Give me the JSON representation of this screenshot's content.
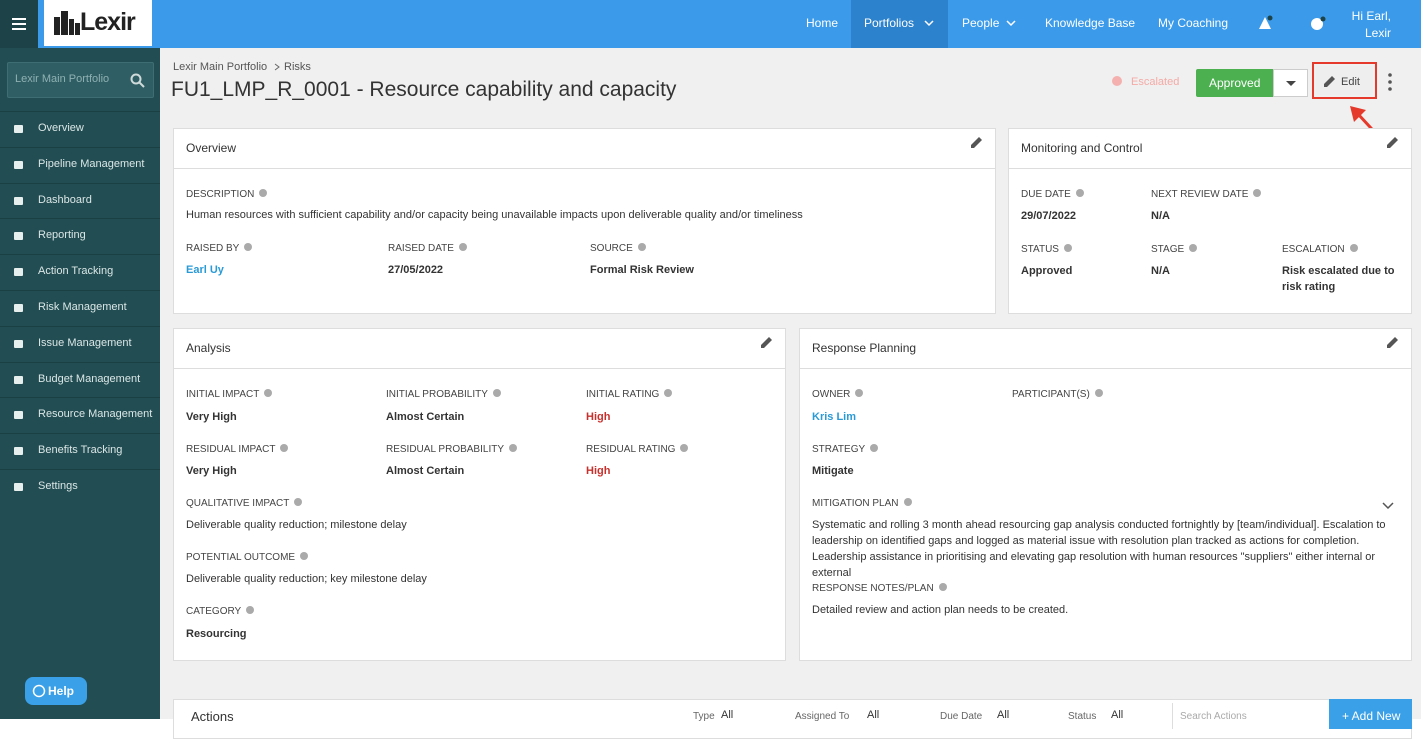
{
  "nav": {
    "logo": "Lexir",
    "items": [
      "Home",
      "Portfolios",
      "People",
      "Knowledge Base",
      "My Coaching"
    ],
    "greeting": "Hi Earl,",
    "user": "Lexir"
  },
  "sidebar": {
    "search": "Lexir Main Portfolio",
    "items": [
      "Overview",
      "Pipeline Management",
      "Dashboard",
      "Reporting",
      "Action Tracking",
      "Risk Management",
      "Issue Management",
      "Budget Management",
      "Resource Management",
      "Benefits Tracking",
      "Settings"
    ],
    "help": "Help"
  },
  "breadcrumb": [
    "Lexir Main Portfolio",
    "Risks"
  ],
  "title": "FU1_LMP_R_0001 - Resource capability and capacity",
  "status": {
    "escalated": "Escalated",
    "approved": "Approved",
    "edit": "Edit"
  },
  "cards": [
    {
      "title": "Overview",
      "fields": [
        {
          "label": "DESCRIPTION",
          "value": "Human resources with sufficient capability and/or capacity being unavailable impacts upon deliverable quality and/or timeliness"
        },
        {
          "label": "RAISED BY",
          "value": "Earl Uy"
        },
        {
          "label": "RAISED DATE",
          "value": "27/05/2022"
        },
        {
          "label": "SOURCE",
          "value": "Formal Risk Review"
        }
      ]
    },
    {
      "title": "Monitoring and Control",
      "fields": [
        {
          "label": "DUE DATE",
          "value": "29/07/2022"
        },
        {
          "label": "NEXT REVIEW DATE",
          "value": "N/A"
        },
        {
          "label": "STATUS",
          "value": "Approved"
        },
        {
          "label": "STAGE",
          "value": "N/A"
        },
        {
          "label": "ESCALATION",
          "value": "Risk escalated due to risk rating"
        }
      ]
    },
    {
      "title": "Analysis",
      "fields": [
        {
          "label": "INITIAL IMPACT",
          "value": "Very High"
        },
        {
          "label": "INITIAL PROBABILITY",
          "value": "Almost Certain"
        },
        {
          "label": "INITIAL RATING",
          "value": "High"
        },
        {
          "label": "RESIDUAL IMPACT",
          "value": "Very High"
        },
        {
          "label": "RESIDUAL PROBABILITY",
          "value": "Almost Certain"
        },
        {
          "label": "RESIDUAL RATING",
          "value": "High"
        },
        {
          "label": "QUALITATIVE IMPACT",
          "value": "Deliverable quality reduction; milestone delay"
        },
        {
          "label": "POTENTIAL OUTCOME",
          "value": "Deliverable quality reduction; key milestone delay"
        },
        {
          "label": "CATEGORY",
          "value": "Resourcing"
        }
      ]
    },
    {
      "title": "Response Planning",
      "fields": [
        {
          "label": "OWNER",
          "value": "Kris Lim"
        },
        {
          "label": "PARTICIPANT(S)"
        },
        {
          "label": "STRATEGY",
          "value": "Mitigate"
        },
        {
          "label": "MITIGATION PLAN",
          "value": "Systematic and rolling 3 month ahead resourcing gap analysis conducted fortnightly by [team/individual]. Escalation to leadership on identified gaps and logged as material issue with resolution plan tracked as actions for completion. Leadership assistance in prioritising and elevating gap resolution with human resources \"suppliers\" either internal or external"
        },
        {
          "label": "RESPONSE NOTES/PLAN",
          "value": "Detailed review and action plan needs to be created."
        }
      ]
    }
  ],
  "actions": {
    "title": "Actions",
    "filters": [
      {
        "label": "Type",
        "value": "All"
      },
      {
        "label": "Assigned To",
        "value": "All"
      },
      {
        "label": "Due Date",
        "value": "All"
      },
      {
        "label": "Status",
        "value": "All"
      }
    ],
    "search": "Search Actions",
    "add": "+ Add New"
  }
}
